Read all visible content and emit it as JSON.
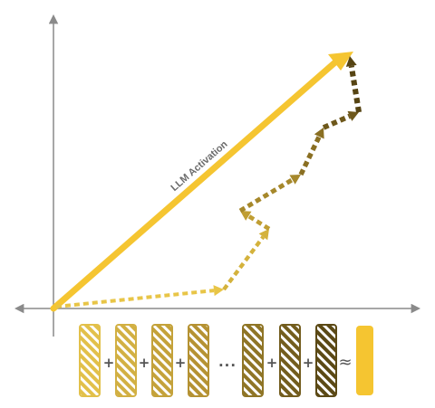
{
  "diagram": {
    "main_arrow_label": "LLM Activation",
    "operators": {
      "plus": "+",
      "ellipsis": "...",
      "approx": "≈"
    },
    "colors": {
      "axis": "#8a8a8a",
      "main_arrow": "#f5c531",
      "result_bar": "#f5c531",
      "path_shades": [
        "#e8c547",
        "#d4b23c",
        "#c09e33",
        "#a6882b",
        "#8a6f22",
        "#6e581b",
        "#564413"
      ]
    },
    "component_bars": [
      {
        "shade": "#e2c04a"
      },
      {
        "shade": "#d2b043"
      },
      {
        "shade": "#c4a23a"
      },
      {
        "shade": "#b59233"
      },
      {
        "shade": "#8f7526"
      },
      {
        "shade": "#735d1e"
      },
      {
        "shade": "#5b4915"
      }
    ]
  }
}
